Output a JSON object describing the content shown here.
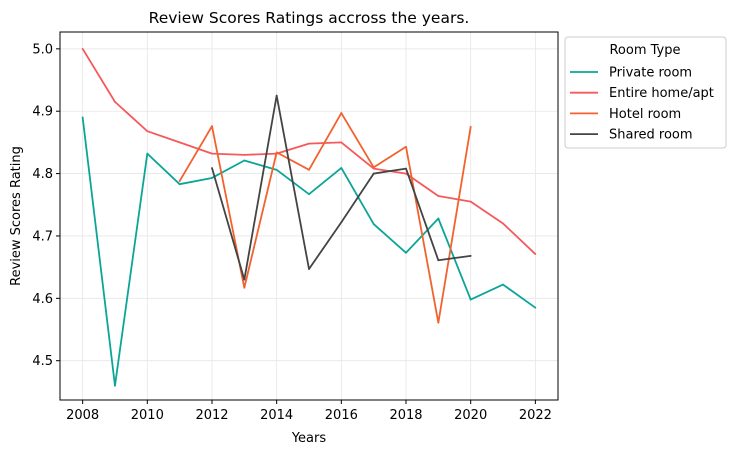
{
  "chart_data": {
    "type": "line",
    "title": "Review Scores Ratings accross the years.",
    "xlabel": "Years",
    "ylabel": "Review Scores Rating",
    "xlim": [
      2007.3,
      2022.7
    ],
    "ylim": [
      4.437,
      5.027
    ],
    "xticks": [
      2008,
      2010,
      2012,
      2014,
      2016,
      2018,
      2020,
      2022
    ],
    "yticks": [
      4.5,
      4.6,
      4.7,
      4.8,
      4.9,
      5.0
    ],
    "grid": true,
    "legend": {
      "title": "Room Type",
      "placement": "outside-right-top"
    },
    "series": [
      {
        "name": "Private room",
        "color": "#0ba597",
        "x": [
          2008,
          2009,
          2010,
          2011,
          2012,
          2013,
          2014,
          2015,
          2016,
          2017,
          2018,
          2019,
          2020,
          2021,
          2022
        ],
        "y": [
          4.89,
          4.46,
          4.832,
          4.783,
          4.793,
          4.821,
          4.806,
          4.767,
          4.809,
          4.719,
          4.673,
          4.728,
          4.598,
          4.622,
          4.585
        ]
      },
      {
        "name": "Entire home/apt",
        "color": "#f5595b",
        "x": [
          2008,
          2009,
          2010,
          2011,
          2012,
          2013,
          2014,
          2015,
          2016,
          2017,
          2018,
          2019,
          2020,
          2021,
          2022
        ],
        "y": [
          5.0,
          4.915,
          4.868,
          4.85,
          4.832,
          4.83,
          4.832,
          4.848,
          4.85,
          4.808,
          4.8,
          4.764,
          4.755,
          4.72,
          4.671
        ]
      },
      {
        "name": "Hotel room",
        "color": "#f2622f",
        "x": [
          2011,
          2012,
          2013,
          2014,
          2015,
          2016,
          2017,
          2018,
          2019,
          2020
        ],
        "y": [
          4.788,
          4.876,
          4.617,
          4.834,
          4.806,
          4.897,
          4.81,
          4.843,
          4.561,
          4.875
        ]
      },
      {
        "name": "Shared room",
        "color": "#444444",
        "x": [
          2012,
          2013,
          2014,
          2015,
          2016,
          2017,
          2018,
          2019,
          2020
        ],
        "y": [
          4.809,
          4.63,
          4.925,
          4.647,
          4.722,
          4.8,
          4.808,
          4.661,
          4.668
        ]
      }
    ]
  }
}
